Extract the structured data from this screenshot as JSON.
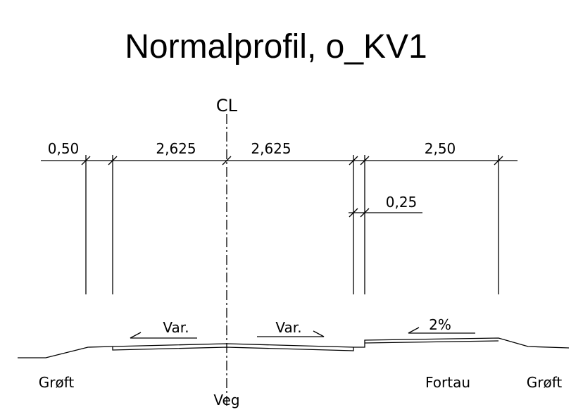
{
  "title": "Normalprofil, o_KV1",
  "centerline_label": "CL",
  "dimensions": [
    "0,50",
    "2,625",
    "2,625",
    "2,50",
    "0,25"
  ],
  "slopes": [
    "Var.",
    "Var.",
    "2%"
  ],
  "labels": [
    "Grøft",
    "Veg",
    "Fortau",
    "Grøft"
  ]
}
